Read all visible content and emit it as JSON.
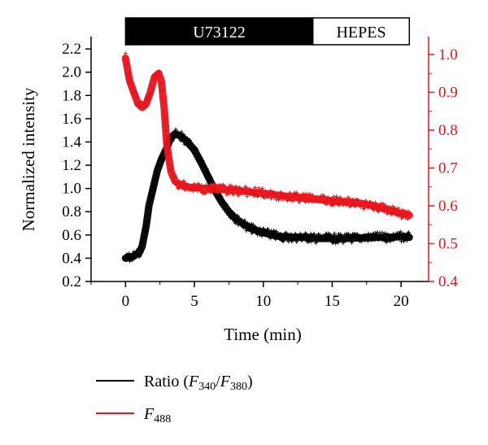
{
  "chart_data": {
    "type": "line",
    "xlabel": "Time (min)",
    "ylabel": "Normalized intensity",
    "xlim": [
      -2.5,
      22
    ],
    "ylim": [
      0.2,
      2.25
    ],
    "y2lim": [
      0.4,
      1.03
    ],
    "x_ticks": [
      "0",
      "5",
      "10",
      "15",
      "20"
    ],
    "y_ticks": [
      "0.2",
      "0.4",
      "0.6",
      "0.8",
      "1.0",
      "1.2",
      "1.4",
      "1.6",
      "1.8",
      "2.0",
      "2.2"
    ],
    "y2_ticks": [
      "0.4",
      "0.5",
      "0.6",
      "0.7",
      "0.8",
      "0.9",
      "1.0"
    ],
    "treatment_bars": [
      {
        "label": "U73122",
        "start": 0,
        "end": 13.6,
        "fill": "#000000",
        "text_color": "#ffffff"
      },
      {
        "label": "HEPES",
        "start": 13.6,
        "end": 20.6,
        "fill": "#ffffff",
        "text_color": "#000000"
      }
    ],
    "series": [
      {
        "name": "Ratio (F340/F380)",
        "legend_main": "Ratio (",
        "legend_f1": "F",
        "legend_sub1": "340",
        "legend_slash": "/",
        "legend_f2": "F",
        "legend_sub2": "380",
        "legend_close": ")",
        "axis": "left",
        "color": "#000000",
        "x": [
          0,
          0.5,
          1.0,
          1.2,
          1.5,
          1.7,
          2.0,
          2.3,
          2.6,
          3.0,
          3.3,
          3.6,
          4.0,
          4.5,
          5.0,
          5.5,
          6.0,
          6.5,
          7.0,
          7.5,
          8.0,
          9.0,
          10.0,
          11.0,
          12.0,
          13.0,
          14.0,
          15.0,
          16.0,
          17.0,
          18.0,
          19.0,
          20.0,
          20.6
        ],
        "y": [
          0.4,
          0.41,
          0.45,
          0.5,
          0.68,
          0.85,
          1.0,
          1.15,
          1.25,
          1.35,
          1.44,
          1.47,
          1.45,
          1.4,
          1.33,
          1.22,
          1.1,
          0.98,
          0.88,
          0.8,
          0.74,
          0.66,
          0.62,
          0.59,
          0.58,
          0.58,
          0.57,
          0.57,
          0.57,
          0.575,
          0.58,
          0.58,
          0.585,
          0.58
        ]
      },
      {
        "name": "F488",
        "legend_f1": "F",
        "legend_sub1": "488",
        "axis": "right",
        "color": "#e8141c",
        "x": [
          0,
          0.1,
          0.3,
          0.6,
          0.9,
          1.2,
          1.5,
          1.8,
          2.1,
          2.4,
          2.6,
          2.8,
          3.0,
          3.3,
          3.6,
          4.0,
          4.5,
          5.0,
          6.0,
          7.0,
          8.0,
          9.0,
          10.0,
          11.0,
          12.0,
          13.0,
          14.0,
          15.0,
          16.0,
          17.0,
          18.0,
          19.0,
          20.0,
          20.6
        ],
        "y": [
          0.99,
          0.97,
          0.93,
          0.9,
          0.87,
          0.86,
          0.87,
          0.9,
          0.94,
          0.95,
          0.93,
          0.86,
          0.76,
          0.69,
          0.665,
          0.655,
          0.65,
          0.648,
          0.645,
          0.643,
          0.64,
          0.637,
          0.633,
          0.628,
          0.624,
          0.62,
          0.617,
          0.613,
          0.61,
          0.607,
          0.6,
          0.59,
          0.58,
          0.575
        ]
      }
    ],
    "legend": {
      "placement": "bottom-left"
    }
  }
}
